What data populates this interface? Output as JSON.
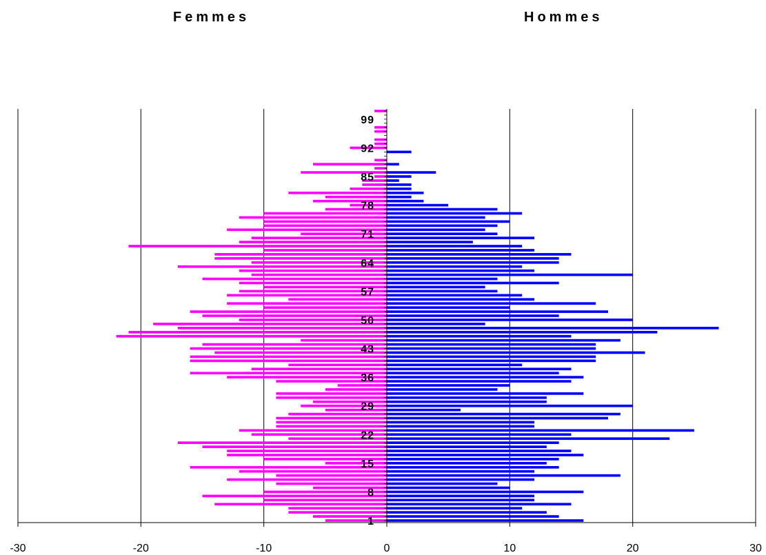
{
  "titles": {
    "left": "Femmes",
    "right": "Hommes"
  },
  "colors": {
    "femmes": "#ff00ff",
    "hommes": "#0000ff"
  },
  "chart_data": {
    "type": "bar",
    "orientation": "horizontal",
    "xlim": [
      -30,
      30
    ],
    "x_ticks": [
      -30,
      -20,
      -10,
      0,
      10,
      20,
      30
    ],
    "age_range": [
      1,
      101
    ],
    "age_tick_labels": [
      1,
      8,
      15,
      22,
      29,
      36,
      43,
      50,
      57,
      64,
      71,
      78,
      85,
      92,
      99
    ],
    "grid": true,
    "series": [
      {
        "name": "Femmes",
        "color": "#ff00ff",
        "values": [
          5,
          6,
          8,
          8,
          14,
          10,
          15,
          10,
          6,
          9,
          13,
          9,
          12,
          16,
          5,
          10,
          13,
          13,
          15,
          17,
          8,
          11,
          12,
          9,
          9,
          9,
          8,
          5,
          7,
          6,
          9,
          9,
          5,
          4,
          9,
          13,
          16,
          11,
          8,
          16,
          16,
          14,
          16,
          15,
          7,
          22,
          21,
          17,
          19,
          12,
          15,
          16,
          10,
          13,
          8,
          13,
          12,
          10,
          12,
          15,
          11,
          12,
          17,
          11,
          14,
          14,
          10,
          21,
          12,
          11,
          7,
          13,
          10,
          10,
          12,
          10,
          5,
          3,
          6,
          5,
          8,
          3,
          2,
          2,
          1,
          7,
          1,
          6,
          1,
          0,
          0,
          3,
          1,
          1,
          0,
          1,
          1,
          0,
          0,
          0,
          1
        ]
      },
      {
        "name": "Hommes",
        "color": "#0000ff",
        "values": [
          16,
          14,
          13,
          11,
          15,
          12,
          12,
          16,
          10,
          9,
          12,
          19,
          12,
          14,
          13,
          14,
          16,
          15,
          13,
          14,
          23,
          15,
          25,
          12,
          12,
          18,
          19,
          6,
          20,
          13,
          13,
          16,
          9,
          10,
          15,
          16,
          14,
          15,
          11,
          17,
          17,
          21,
          17,
          17,
          19,
          15,
          22,
          27,
          8,
          20,
          14,
          18,
          10,
          17,
          12,
          11,
          9,
          8,
          14,
          9,
          20,
          12,
          11,
          14,
          14,
          15,
          12,
          11,
          7,
          12,
          9,
          8,
          9,
          10,
          8,
          11,
          9,
          5,
          3,
          2,
          3,
          2,
          2,
          1,
          2,
          4,
          0,
          1,
          0,
          0,
          2,
          0,
          0,
          0,
          0,
          0,
          0,
          0,
          0,
          0,
          0
        ]
      }
    ]
  }
}
